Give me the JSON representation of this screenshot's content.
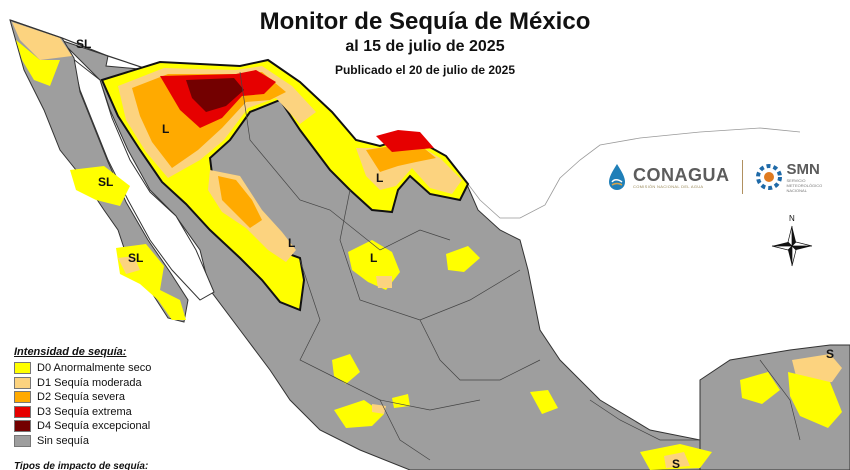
{
  "header": {
    "title": "Monitor de Sequía de México",
    "subtitle": "al 15 de julio de 2025",
    "published": "Publicado el 20 de julio de 2025"
  },
  "legend": {
    "title": "Intensidad de sequía:",
    "items": [
      {
        "label": "D0 Anormalmente seco",
        "color": "#ffff00"
      },
      {
        "label": "D1 Sequía moderada",
        "color": "#fcd37f"
      },
      {
        "label": "D2 Sequía severa",
        "color": "#ffaa00"
      },
      {
        "label": "D3 Sequía extrema",
        "color": "#e60000"
      },
      {
        "label": "D4 Sequía excepcional",
        "color": "#730000"
      },
      {
        "label": "Sin sequía",
        "color": "#9e9e9e"
      }
    ]
  },
  "impact_title": "Tipos de impacto de sequía:",
  "map_labels": {
    "sl_baja_north": "SL",
    "sl_baja_mid": "SL",
    "sl_baja_south": "SL",
    "l_chihuahua": "L",
    "l_tamaulipas": "L",
    "l_sinaloa": "L",
    "l_zacatecas": "L",
    "l_yucatan": "S",
    "l_south": "S"
  },
  "logos": {
    "conagua": "CONAGUA",
    "conagua_sub": "COMISIÓN NACIONAL DEL AGUA",
    "smn": "SMN",
    "smn_sub1": "SERVICIO",
    "smn_sub2": "METEOROLÓGICO",
    "smn_sub3": "NACIONAL"
  },
  "compass": {
    "north": "N"
  },
  "colors": {
    "land": "#9e9e9e",
    "outside_land": "#ffffff",
    "sea": "#ffffff",
    "border": "#333333"
  }
}
